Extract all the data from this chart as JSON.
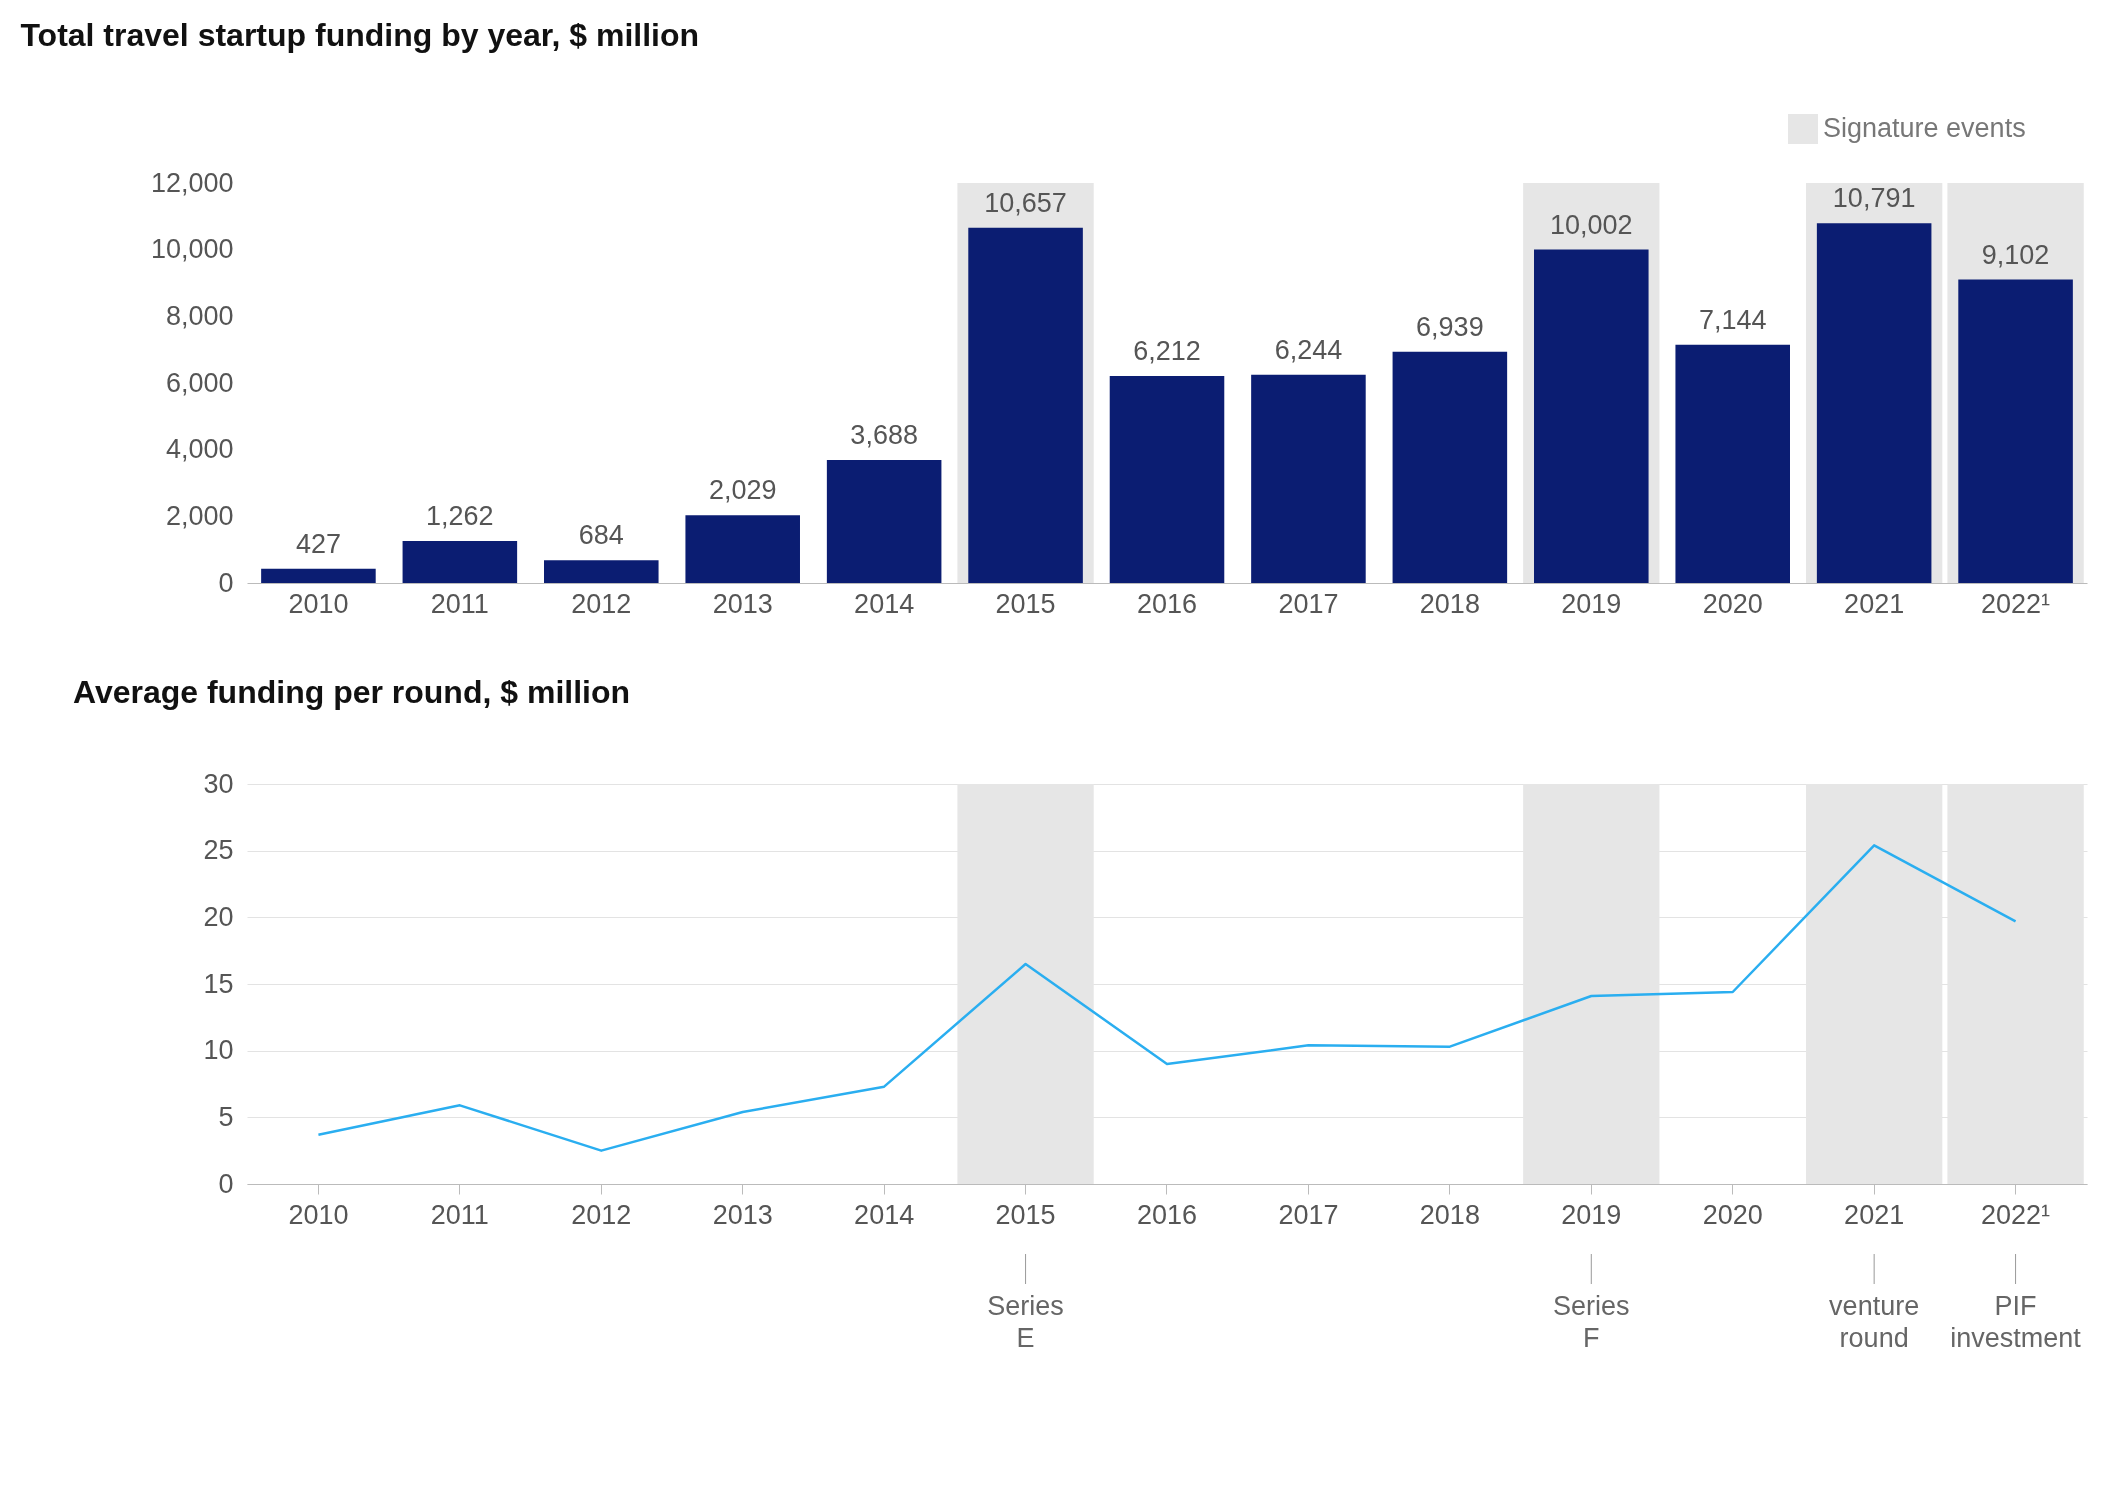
{
  "chart_data": [
    {
      "type": "bar",
      "title": "Total travel startup funding by year, $ million",
      "categories": [
        "2010",
        "2011",
        "2012",
        "2013",
        "2014",
        "2015",
        "2016",
        "2017",
        "2018",
        "2019",
        "2020",
        "2021",
        "2022¹"
      ],
      "values": [
        427,
        1262,
        684,
        2029,
        3688,
        10657,
        6212,
        6244,
        6939,
        10002,
        7144,
        10791,
        9102
      ],
      "color": "#0b1d72",
      "value_labels": [
        "427",
        "1,262",
        "684",
        "2,029",
        "3,688",
        "10,657",
        "6,212",
        "6,244",
        "6,939",
        "10,002",
        "7,144",
        "10,791",
        "9,102"
      ],
      "ylim": [
        0,
        12000
      ],
      "yticks": [
        {
          "value": 0,
          "label": "0"
        },
        {
          "value": 2000,
          "label": "2,000"
        },
        {
          "value": 4000,
          "label": "4,000"
        },
        {
          "value": 6000,
          "label": "6,000"
        },
        {
          "value": 8000,
          "label": "8,000"
        },
        {
          "value": 10000,
          "label": "10,000"
        },
        {
          "value": 12000,
          "label": "12,000"
        }
      ],
      "grid": false,
      "legend": "top right",
      "bands": [
        {
          "axis": "x",
          "from": "2015",
          "to": "2015",
          "label": "Signature events",
          "color": "#e6e6e6"
        },
        {
          "axis": "x",
          "from": "2019",
          "to": "2019",
          "color": "#e6e6e6"
        },
        {
          "axis": "x",
          "from": "2021",
          "to": "2021",
          "color": "#e6e6e6"
        },
        {
          "axis": "x",
          "from": "2022¹",
          "to": "2022¹",
          "color": "#e6e6e6"
        }
      ]
    },
    {
      "type": "line",
      "title": "Average funding per round, $ million",
      "categories": [
        "2010",
        "2011",
        "2012",
        "2013",
        "2014",
        "2015",
        "2016",
        "2017",
        "2018",
        "2019",
        "2020",
        "2021",
        "2022¹"
      ],
      "values": [
        3.7,
        5.9,
        2.5,
        5.4,
        7.3,
        16.5,
        9.0,
        10.4,
        10.3,
        14.1,
        14.4,
        25.4,
        19.7
      ],
      "color": "#2aaef0",
      "ylim": [
        0,
        30
      ],
      "yticks": [
        0,
        5,
        10,
        15,
        20,
        25,
        30
      ],
      "grid": "y",
      "bands": [
        {
          "axis": "x",
          "from": "2015",
          "to": "2015",
          "color": "#e6e6e6"
        },
        {
          "axis": "x",
          "from": "2019",
          "to": "2019",
          "color": "#e6e6e6"
        },
        {
          "axis": "x",
          "from": "2021",
          "to": "2021",
          "color": "#e6e6e6"
        },
        {
          "axis": "x",
          "from": "2022¹",
          "to": "2022¹",
          "color": "#e6e6e6"
        }
      ],
      "annotations": [
        {
          "text": "Series E",
          "x": "2015"
        },
        {
          "text": "Series F",
          "x": "2019"
        },
        {
          "text": "venture round",
          "x": "2021"
        },
        {
          "text": "PIF investment",
          "x": "2022¹"
        }
      ]
    }
  ]
}
